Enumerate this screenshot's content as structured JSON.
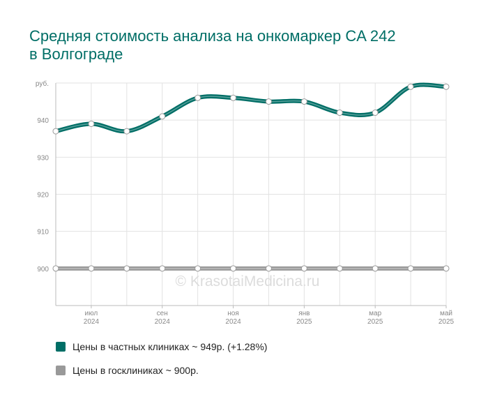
{
  "chart_data": {
    "type": "line",
    "title": "Средняя стоимость анализа на онкомаркер CA 242 в Волгограде",
    "watermark": "© KrasotaiMedicina.ru",
    "categories": [
      null,
      "июл 2024",
      null,
      "сен 2024",
      null,
      "ноя 2024",
      null,
      "янв 2025",
      null,
      "мар 2025",
      null,
      "май 2025"
    ],
    "series": [
      {
        "name": "Цены в частных клиниках ~ 949р. (+1.28%)",
        "color": "#006e66",
        "values": [
          937,
          939,
          937,
          941,
          946,
          946,
          945,
          945,
          942,
          942,
          949,
          949
        ]
      },
      {
        "name": "Цены в госклиниках ~ 900р.",
        "color": "#999999",
        "values": [
          900,
          900,
          900,
          900,
          900,
          900,
          900,
          900,
          900,
          900,
          900,
          900
        ]
      }
    ],
    "ylim": [
      890,
      950
    ],
    "yticks": [
      900,
      910,
      920,
      930,
      940,
      {
        "value": 950,
        "label": "руб."
      }
    ],
    "grid": true
  }
}
